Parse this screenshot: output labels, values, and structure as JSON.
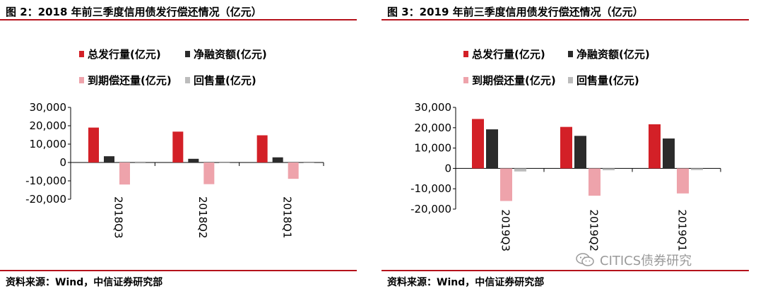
{
  "colors": {
    "accent": "#b5121b",
    "total_issuance": "#d32027",
    "net_financing": "#2b2b2b",
    "maturity": "#eea3ab",
    "putback": "#bcbcbc"
  },
  "watermark": {
    "text": "CITICS债券研究",
    "icon": "wechat-icon"
  },
  "chart_data": [
    {
      "type": "bar",
      "title": "图 2：2018 年前三季度信用债发行偿还情况（亿元）",
      "source": "资料来源：Wind，中信证券研究部",
      "categories": [
        "2018Q3",
        "2018Q2",
        "2018Q1"
      ],
      "series": [
        {
          "name": "总发行量(亿元)",
          "values": [
            19000,
            16800,
            14800
          ]
        },
        {
          "name": "净融资额(亿元)",
          "values": [
            3400,
            2000,
            2800
          ]
        },
        {
          "name": "到期偿还量(亿元)",
          "values": [
            -12000,
            -11800,
            -8900
          ]
        },
        {
          "name": "回售量(亿元)",
          "values": [
            -500,
            -200,
            -300
          ]
        }
      ],
      "ylim": [
        -20000,
        30000
      ],
      "yticks": [
        "30,000",
        "20,000",
        "10,000",
        "0",
        "-10,000",
        "-20,000"
      ],
      "xlabel": "",
      "ylabel": "",
      "grid": false,
      "legend_position": "top-left"
    },
    {
      "type": "bar",
      "title": "图 3：2019 年前三季度信用债发行偿还情况（亿元）",
      "source": "资料来源：Wind，中信证券研究部",
      "categories": [
        "2019Q3",
        "2019Q2",
        "2019Q1"
      ],
      "series": [
        {
          "name": "总发行量(亿元)",
          "values": [
            24300,
            20400,
            21700
          ]
        },
        {
          "name": "净融资额(亿元)",
          "values": [
            19200,
            16000,
            14700
          ]
        },
        {
          "name": "到期偿还量(亿元)",
          "values": [
            -16000,
            -13400,
            -12300
          ]
        },
        {
          "name": "回售量(亿元)",
          "values": [
            -1500,
            -900,
            -800
          ]
        }
      ],
      "ylim": [
        -20000,
        30000
      ],
      "yticks": [
        "30,000",
        "20,000",
        "10,000",
        "0",
        "-10,000",
        "-20,000"
      ],
      "xlabel": "",
      "ylabel": "",
      "grid": false,
      "legend_position": "top-left"
    }
  ]
}
